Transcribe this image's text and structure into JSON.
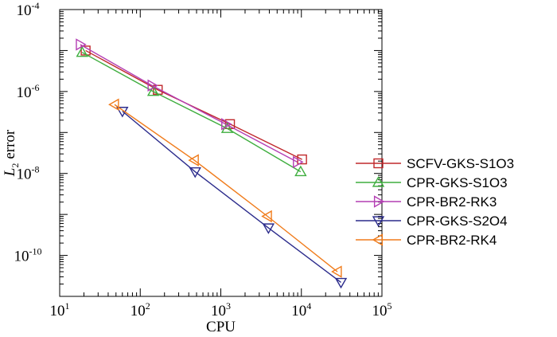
{
  "chart_data": {
    "type": "line",
    "xscale": "log",
    "yscale": "log",
    "xlabel": "CPU",
    "ylabel": {
      "var": "L",
      "sub": "2",
      "rest": "error"
    },
    "xlim": [
      10,
      100000
    ],
    "ylim": [
      1e-11,
      0.0001
    ],
    "x_ticks": [
      {
        "value": 10,
        "base": "10",
        "exp": "1"
      },
      {
        "value": 100,
        "base": "10",
        "exp": "2"
      },
      {
        "value": 1000,
        "base": "10",
        "exp": "3"
      },
      {
        "value": 10000,
        "base": "10",
        "exp": "4"
      },
      {
        "value": 100000,
        "base": "10",
        "exp": "5"
      }
    ],
    "y_ticks": [
      {
        "value": 1e-10,
        "base": "10",
        "exp": "-10"
      },
      {
        "value": 1e-08,
        "base": "10",
        "exp": "-8"
      },
      {
        "value": 1e-06,
        "base": "10",
        "exp": "-6"
      },
      {
        "value": 0.0001,
        "base": "10",
        "exp": "-4"
      }
    ],
    "legend_position": "right",
    "series": [
      {
        "name": "SCFV-GKS-S1O3",
        "color": "#c0282b",
        "marker": "square",
        "x": [
          21,
          165,
          1300,
          10200
        ],
        "y": [
          1e-05,
          1.1e-06,
          1.6e-07,
          2.2e-08
        ]
      },
      {
        "name": "CPR-GKS-S1O3",
        "color": "#3fae3f",
        "marker": "triangle-up",
        "x": [
          19,
          145,
          1200,
          9800
        ],
        "y": [
          9e-06,
          1e-06,
          1.25e-07,
          1.1e-08
        ]
      },
      {
        "name": "CPR-BR2-RK3",
        "color": "#b43fb4",
        "marker": "triangle-right",
        "x": [
          18,
          140,
          1150,
          8900
        ],
        "y": [
          1.4e-05,
          1.4e-06,
          1.6e-07,
          1.9e-08
        ]
      },
      {
        "name": "CPR-GKS-S2O4",
        "color": "#2c2c8c",
        "marker": "triangle-down",
        "x": [
          60,
          480,
          3900,
          31000
        ],
        "y": [
          3.3e-07,
          1.1e-08,
          4.7e-10,
          2.2e-11
        ]
      },
      {
        "name": "CPR-BR2-RK4",
        "color": "#f07c1c",
        "marker": "triangle-left",
        "x": [
          48,
          470,
          3800,
          28000
        ],
        "y": [
          4.8e-07,
          2.1e-08,
          9e-10,
          4e-11
        ]
      }
    ]
  }
}
